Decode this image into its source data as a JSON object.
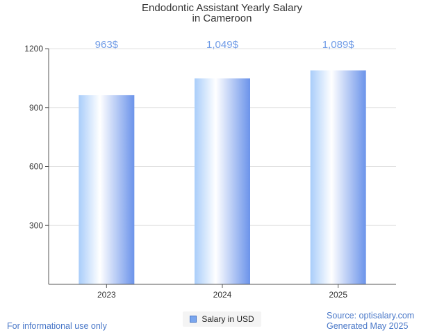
{
  "chart_data": {
    "type": "bar",
    "title": "Endodontic Assistant Yearly Salary",
    "subtitle": "in Cameroon",
    "categories": [
      "2023",
      "2024",
      "2025"
    ],
    "series": [
      {
        "name": "Salary in USD",
        "values": [
          963,
          1049,
          1089
        ]
      }
    ],
    "data_labels": [
      "963$",
      "1,049$",
      "1,089$"
    ],
    "yticks": [
      "300",
      "600",
      "900",
      "1200"
    ],
    "ylim": [
      0,
      1200
    ],
    "xlabel": "",
    "ylabel": "",
    "grid": true,
    "legend_position": "bottom-center"
  },
  "colors": {
    "bar_light": "#ffffff",
    "bar_mid": "#a9cdfa",
    "bar_dark": "#6b93ea",
    "label": "#6f9be6",
    "grid": "#e2e2e2",
    "axis": "#555555"
  },
  "footer": {
    "disclaimer": "For informational use only",
    "source": "Source: optisalary.com",
    "generated": "Generated May 2025"
  }
}
